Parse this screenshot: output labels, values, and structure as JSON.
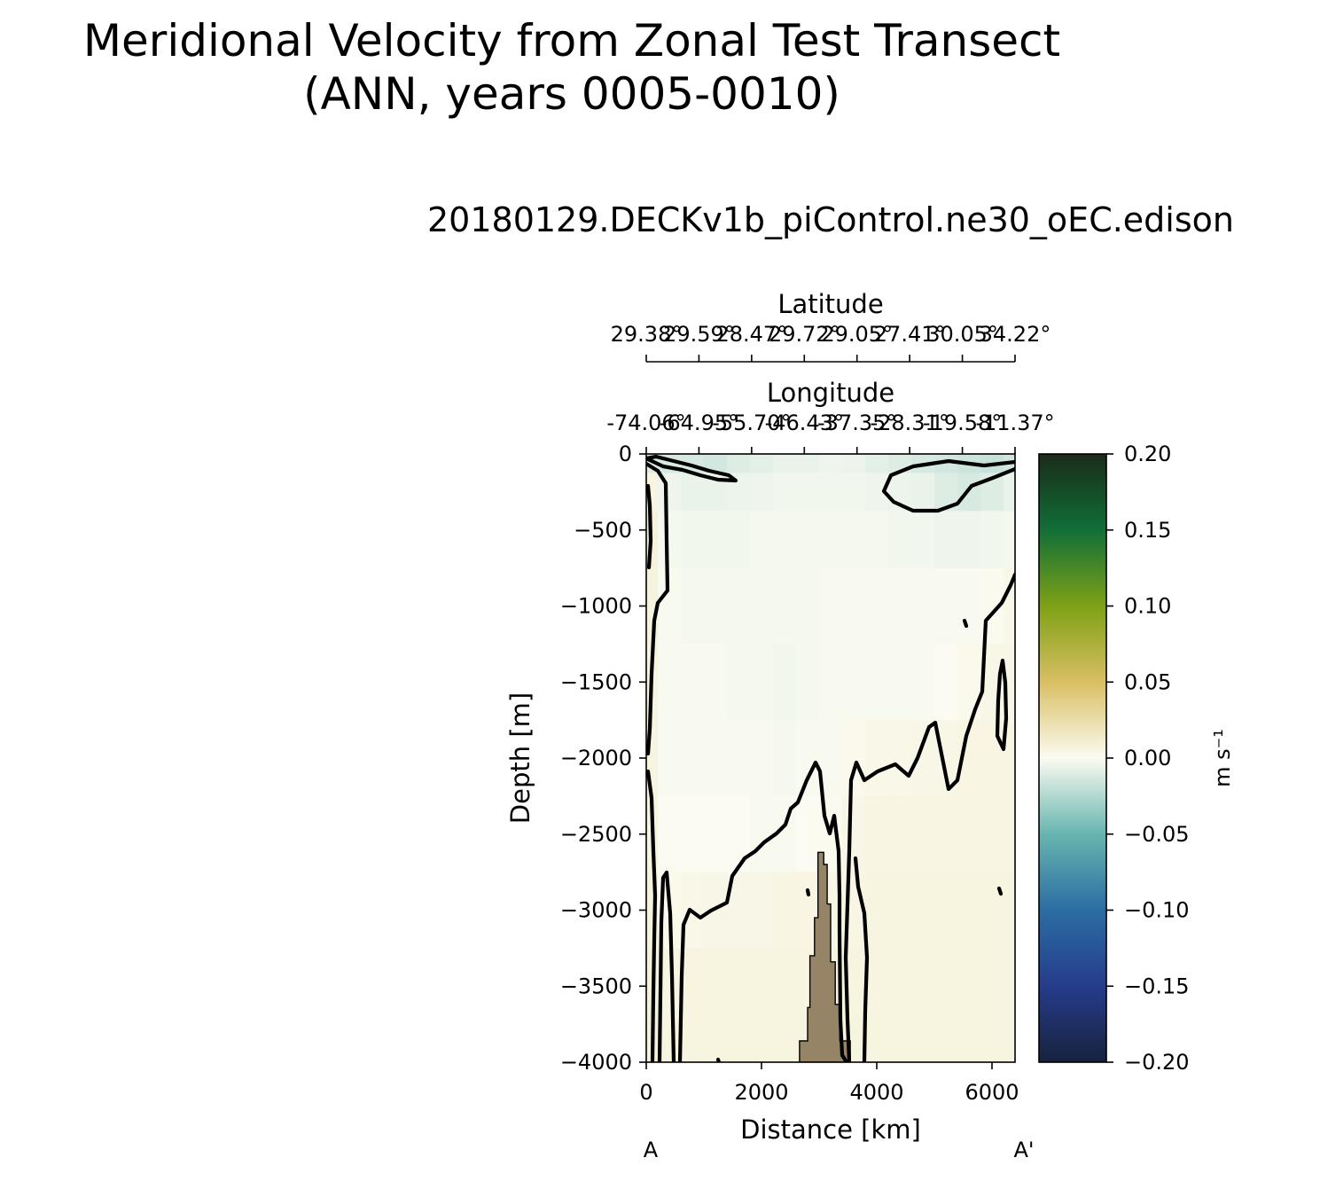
{
  "figure": {
    "suptitle_line1": "Meridional Velocity from Zonal Test Transect",
    "suptitle_line2": "(ANN, years 0005-0010)",
    "subtitle": "20180129.DECKv1b_piControl.ne30_oEC.edison"
  },
  "chart_data": {
    "type": "heatmap",
    "title": "20180129.DECKv1b_piControl.ne30_oEC.edison",
    "xlabel": "Distance [km]",
    "ylabel": "Depth [m]",
    "xlim": [
      0,
      6400
    ],
    "ylim": [
      -4000,
      0
    ],
    "x_ticks": [
      0,
      2000,
      4000,
      6000
    ],
    "x_tick_labels": [
      "0",
      "2000",
      "4000",
      "6000"
    ],
    "y_ticks": [
      0,
      -500,
      -1000,
      -1500,
      -2000,
      -2500,
      -3000,
      -3500,
      -4000
    ],
    "y_tick_labels": [
      "0",
      "−500",
      "−1000",
      "−1500",
      "−2000",
      "−2500",
      "−3000",
      "−3500",
      "−4000"
    ],
    "secondary_axes": [
      {
        "label": "Longitude",
        "tick_labels": [
          "-74.06°",
          "-64.95°",
          "-55.70°",
          "-46.43°",
          "-37.35°",
          "-28.31°",
          "-19.58°",
          "-11.37°"
        ]
      },
      {
        "label": "Latitude",
        "tick_labels": [
          "29.38°",
          "29.59°",
          "28.47°",
          "29.72°",
          "29.05°",
          "27.41°",
          "30.05°",
          "34.22°"
        ]
      }
    ],
    "section_endpoints": [
      "A",
      "A'"
    ],
    "colorbar": {
      "label": "m s⁻¹",
      "range": [
        -0.2,
        0.2
      ],
      "ticks": [
        0.2,
        0.15,
        0.1,
        0.05,
        0.0,
        -0.05,
        -0.1,
        -0.15,
        -0.2
      ],
      "tick_labels": [
        "0.20",
        "0.15",
        "0.10",
        "0.05",
        "0.00",
        "−0.05",
        "−0.10",
        "−0.15",
        "−0.20"
      ],
      "colormap_stops": [
        {
          "value": -0.2,
          "color": "#17223d"
        },
        {
          "value": -0.15,
          "color": "#263c8c"
        },
        {
          "value": -0.1,
          "color": "#2b6da3"
        },
        {
          "value": -0.05,
          "color": "#67b5b0"
        },
        {
          "value": 0.0,
          "color": "#fbfbf1"
        },
        {
          "value": 0.05,
          "color": "#d9bf63"
        },
        {
          "value": 0.1,
          "color": "#7fa116"
        },
        {
          "value": 0.15,
          "color": "#116f37"
        },
        {
          "value": 0.2,
          "color": "#1a2b1a"
        }
      ]
    },
    "contour_levels": [
      0.0
    ],
    "bathymetry_color": "#958466",
    "velocity_field": {
      "x_km": [
        0,
        400,
        800,
        1200,
        1600,
        2000,
        2400,
        2800,
        3200,
        3600,
        4000,
        4400,
        4800,
        5200,
        5600,
        6000,
        6400
      ],
      "depth_m": [
        0,
        -250,
        -500,
        -1000,
        -1500,
        -2000,
        -2500,
        -3000,
        -3500,
        -4000
      ],
      "v_ms": [
        [
          -0.01,
          -0.012,
          -0.012,
          -0.014,
          -0.01,
          -0.008,
          -0.006,
          -0.006,
          -0.004,
          -0.005,
          -0.008,
          -0.01,
          -0.012,
          -0.014,
          -0.016,
          -0.018,
          -0.015
        ],
        [
          0.006,
          -0.004,
          -0.006,
          -0.006,
          -0.005,
          -0.004,
          -0.003,
          -0.003,
          -0.003,
          -0.003,
          -0.004,
          -0.005,
          -0.006,
          -0.01,
          -0.012,
          -0.01,
          -0.006
        ],
        [
          0.008,
          -0.002,
          -0.003,
          -0.003,
          -0.003,
          -0.002,
          -0.002,
          -0.002,
          -0.002,
          -0.002,
          -0.002,
          -0.003,
          -0.003,
          -0.004,
          -0.004,
          -0.003,
          -0.002
        ],
        [
          0.007,
          -0.001,
          -0.002,
          -0.002,
          -0.002,
          -0.002,
          -0.002,
          -0.002,
          -0.001,
          -0.001,
          -0.001,
          -0.001,
          -0.001,
          -0.001,
          -0.001,
          0.001,
          0.003
        ],
        [
          0.006,
          -0.001,
          -0.001,
          -0.001,
          -0.002,
          -0.002,
          -0.003,
          -0.002,
          -0.001,
          -0.001,
          -0.001,
          -0.001,
          -0.001,
          0.0,
          0.002,
          0.004,
          0.004
        ],
        [
          0.006,
          -0.001,
          -0.001,
          -0.001,
          -0.001,
          -0.001,
          -0.002,
          -0.001,
          -0.001,
          0.002,
          0.003,
          0.003,
          0.004,
          0.004,
          0.005,
          0.005,
          0.005
        ],
        [
          0.006,
          0.0,
          0.0,
          0.0,
          0.0,
          -0.001,
          -0.001,
          0.0,
          0.001,
          0.004,
          0.005,
          0.005,
          0.005,
          0.005,
          0.005,
          0.005,
          0.005
        ],
        [
          0.007,
          0.002,
          0.003,
          0.004,
          0.004,
          0.004,
          0.005,
          0.005,
          0.004,
          0.005,
          0.006,
          0.006,
          0.006,
          0.006,
          0.006,
          0.006,
          0.006
        ],
        [
          0.008,
          0.005,
          0.006,
          0.006,
          0.006,
          0.006,
          0.006,
          0.006,
          0.006,
          0.006,
          0.006,
          0.006,
          0.006,
          0.006,
          0.006,
          0.006,
          0.006
        ],
        [
          0.008,
          0.006,
          0.006,
          0.006,
          0.006,
          0.006,
          0.006,
          0.006,
          0.006,
          0.006,
          0.006,
          0.006,
          0.006,
          0.006,
          0.006,
          0.006,
          0.006
        ]
      ]
    }
  }
}
